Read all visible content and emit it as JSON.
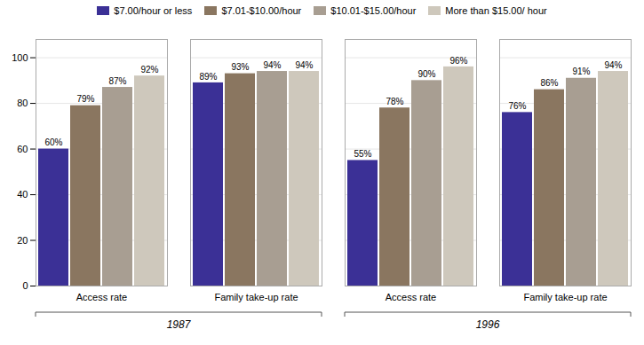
{
  "chart_data": {
    "type": "bar",
    "categories": [
      "Access rate",
      "Family take-up rate",
      "Access rate",
      "Family take-up rate"
    ],
    "annotations": [
      "1987",
      "1996"
    ],
    "series": [
      {
        "name": "$7.00/hour or less",
        "color": "#3b3096",
        "values": [
          60,
          89,
          55,
          76
        ],
        "value_labels": [
          "60%",
          "89%",
          "55%",
          "76%"
        ]
      },
      {
        "name": "$7.01-$10.00/hour",
        "color": "#8a7660",
        "values": [
          79,
          93,
          78,
          86
        ],
        "value_labels": [
          "79%",
          "93%",
          "78%",
          "86%"
        ]
      },
      {
        "name": "$10.01-$15.00/hour",
        "color": "#a89e92",
        "values": [
          87,
          94,
          90,
          91
        ],
        "value_labels": [
          "87%",
          "94%",
          "90%",
          "91%"
        ]
      },
      {
        "name": "More than $15.00/ hour",
        "color": "#cec8bc",
        "values": [
          92,
          94,
          96,
          94
        ],
        "value_labels": [
          "92%",
          "94%",
          "96%",
          "94%"
        ]
      }
    ],
    "ylim": [
      0,
      108
    ],
    "yticks": [
      0,
      20,
      40,
      60,
      80,
      100
    ],
    "grid": true,
    "legend": "top",
    "data_labels": true
  }
}
